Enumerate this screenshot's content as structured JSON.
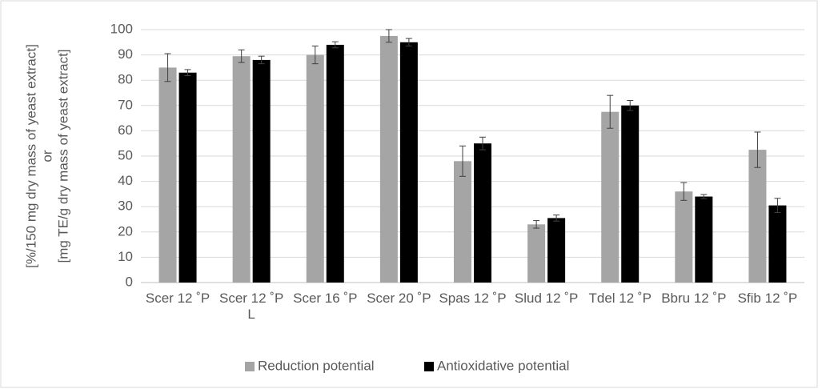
{
  "chart_data": {
    "type": "bar",
    "ylabel": [
      "[%/150 mg dry mass of yeast extract]",
      "or",
      "[mg TE/g dry mass of yeast extract]"
    ],
    "categories": [
      "Scer 12 ˚P",
      "Scer 12 ˚P L",
      "Scer 16 ˚P",
      "Scer 20 ˚P",
      "Spas 12 ˚P",
      "Slud 12 ˚P",
      "Tdel 12 ˚P",
      "Bbru 12 ˚P",
      "Sfib 12 ˚P"
    ],
    "series": [
      {
        "name": "Reduction potential",
        "color": "#a5a5a5",
        "values": [
          85,
          89.5,
          90,
          97.5,
          48,
          23,
          67.5,
          36,
          52.5
        ],
        "errors": [
          5.5,
          2.5,
          3.5,
          2.5,
          6,
          1.5,
          6.5,
          3.5,
          7
        ]
      },
      {
        "name": "Antioxidative potential",
        "color": "#000000",
        "values": [
          83,
          88,
          94,
          95,
          55,
          25.5,
          70,
          34,
          30.5
        ],
        "errors": [
          1.2,
          1.5,
          1.2,
          1.5,
          2.5,
          1.2,
          2,
          0.8,
          2.8
        ]
      }
    ],
    "ylim": [
      0,
      100
    ],
    "yticks": [
      0,
      10,
      20,
      30,
      40,
      50,
      60,
      70,
      80,
      90,
      100
    ],
    "grid": true,
    "legend": "bottom"
  }
}
